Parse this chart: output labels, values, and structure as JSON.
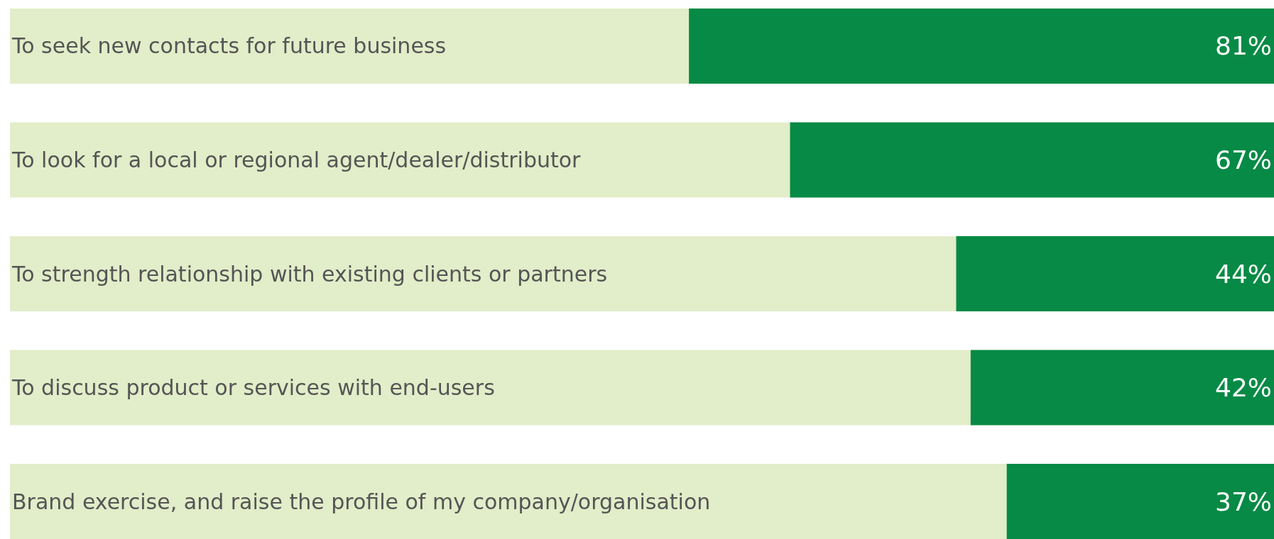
{
  "chart_data": {
    "type": "bar",
    "orientation": "horizontal",
    "categories": [
      "To seek new contacts for future business",
      "To look for a local or regional agent/dealer/distributor",
      "To strength relationship with existing clients or partners",
      "To discuss product or services with end-users",
      "Brand exercise, and raise the profile of my company/organisation"
    ],
    "values": [
      81,
      67,
      44,
      42,
      37
    ],
    "color": "#068a45",
    "xlim": [
      175,
      0
    ],
    "data_labels": true,
    "value_labels": [
      "81%",
      "67%",
      "44%",
      "42%",
      "37%"
    ],
    "tick_labels": "y",
    "grid": false,
    "legend": false
  }
}
